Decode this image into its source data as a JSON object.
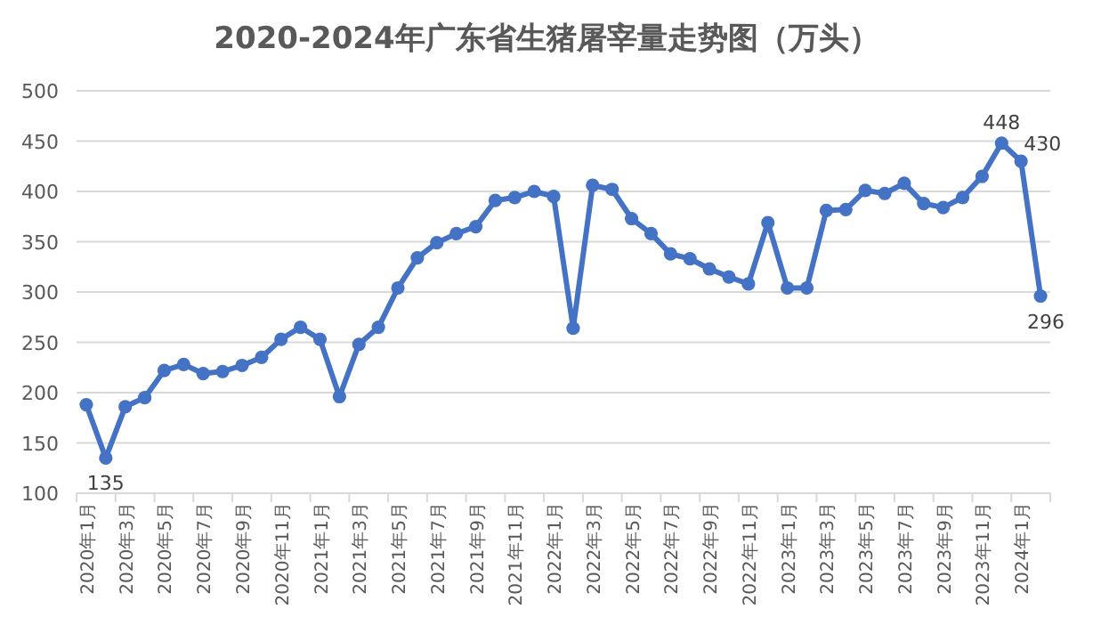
{
  "chart_data": {
    "type": "line",
    "title": "2020-2024年广东省生猪屠宰量走势图（万头）",
    "categories": [
      "2020年1月",
      null,
      "2020年3月",
      null,
      "2020年5月",
      null,
      "2020年7月",
      null,
      "2020年9月",
      null,
      "2020年11月",
      null,
      "2021年1月",
      null,
      "2021年3月",
      null,
      "2021年5月",
      null,
      "2021年7月",
      null,
      "2021年9月",
      null,
      "2021年11月",
      null,
      "2022年1月",
      null,
      "2022年3月",
      null,
      "2022年5月",
      null,
      "2022年7月",
      null,
      "2022年9月",
      null,
      "2022年11月",
      null,
      "2023年1月",
      null,
      "2023年3月",
      null,
      "2023年5月",
      null,
      "2023年7月",
      null,
      "2023年9月",
      null,
      "2023年11月",
      null,
      "2024年1月",
      null
    ],
    "values": [
      188,
      135,
      186,
      195,
      222,
      228,
      219,
      221,
      227,
      235,
      253,
      265,
      253,
      196,
      248,
      265,
      304,
      334,
      349,
      358,
      365,
      391,
      394,
      400,
      395,
      264,
      406,
      402,
      373,
      358,
      338,
      333,
      323,
      315,
      308,
      369,
      304,
      304,
      381,
      382,
      401,
      398,
      408,
      388,
      384,
      394,
      415,
      448,
      430,
      296
    ],
    "value_labels": [
      null,
      "135",
      null,
      null,
      null,
      null,
      null,
      null,
      null,
      null,
      null,
      null,
      null,
      null,
      null,
      null,
      null,
      null,
      null,
      null,
      null,
      null,
      null,
      null,
      null,
      null,
      null,
      null,
      null,
      null,
      null,
      null,
      null,
      null,
      null,
      null,
      null,
      null,
      null,
      null,
      null,
      null,
      null,
      null,
      null,
      null,
      null,
      "448",
      "430",
      "296"
    ],
    "color": "#4472c4",
    "marker": "circle",
    "grid": "y",
    "ylim": [
      100,
      500
    ],
    "yticks": [
      100,
      150,
      200,
      250,
      300,
      350,
      400,
      450,
      500
    ]
  }
}
